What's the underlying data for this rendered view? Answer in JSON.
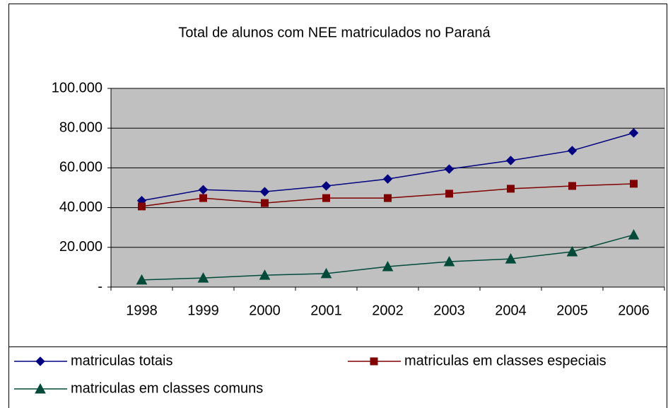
{
  "chart_data": {
    "type": "line",
    "title": "Total de alunos com NEE matriculados no Paraná",
    "categories": [
      "1998",
      "1999",
      "2000",
      "2001",
      "2002",
      "2003",
      "2004",
      "2005",
      "2006"
    ],
    "series": [
      {
        "name": "matriculas totais",
        "color": "#000080",
        "marker": "diamond",
        "values": [
          43500,
          49000,
          48000,
          50900,
          54400,
          59400,
          63700,
          68700,
          77600
        ]
      },
      {
        "name": "matriculas em classes especiais",
        "color": "#800000",
        "marker": "square",
        "values": [
          40600,
          44800,
          42300,
          44800,
          44800,
          47000,
          49500,
          50900,
          52000
        ]
      },
      {
        "name": "matriculas em classes comuns",
        "color": "#004a3a",
        "marker": "triangle",
        "values": [
          3600,
          4600,
          6000,
          6800,
          10300,
          12800,
          14200,
          17800,
          26300
        ]
      }
    ],
    "ylim": [
      0,
      100000
    ],
    "yticks": [
      {
        "value": 0,
        "label": "-"
      },
      {
        "value": 20000,
        "label": "20.000"
      },
      {
        "value": 40000,
        "label": "40.000"
      },
      {
        "value": 60000,
        "label": "60.000"
      },
      {
        "value": 80000,
        "label": "80.000"
      },
      {
        "value": 100000,
        "label": "100.000"
      }
    ],
    "grid": true,
    "legend": "bottom"
  }
}
